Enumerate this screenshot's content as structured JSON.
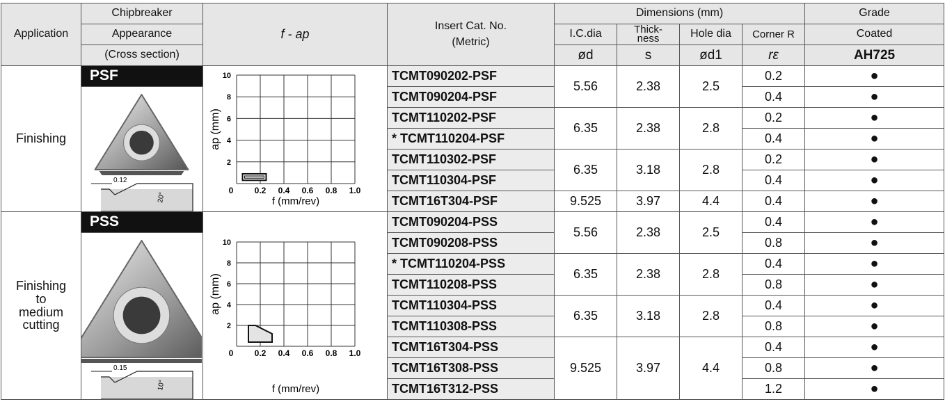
{
  "header": {
    "application": "Application",
    "chipbreaker": "Chipbreaker",
    "appearance": "Appearance",
    "cross_section": "(Cross section)",
    "f_ap": "f - ap",
    "insert_cat_no": "Insert Cat. No.",
    "metric": "(Metric)",
    "dimensions": "Dimensions (mm)",
    "ic_dia": "I.C.dia",
    "thickness_1": "Thick-",
    "thickness_2": "ness",
    "hole_dia": "Hole dia",
    "corner_r": "Corner R",
    "sym_d": "ød",
    "sym_s": "s",
    "sym_d1": "ød1",
    "sym_r": "rε",
    "grade": "Grade",
    "coated": "Coated",
    "grade_name": "AH725"
  },
  "sections": [
    {
      "application": [
        "Finishing"
      ],
      "chipbreaker": "PSF",
      "profile_dim": "0.12",
      "profile_angle": "20°",
      "chart": {
        "y_label": "ap (mm)",
        "x_label": "f (mm/rev)",
        "yticks": [
          "10",
          "8",
          "6",
          "4",
          "2"
        ],
        "xticks": [
          "0",
          "0.2",
          "0.4",
          "0.6",
          "0.8",
          "1.0"
        ]
      },
      "groups": [
        {
          "ic": "5.56",
          "thickness": "2.38",
          "hole": "2.5",
          "inserts": [
            {
              "cat": "TCMT090202-PSF",
              "corner": "0.2",
              "grade": "●"
            },
            {
              "cat": "TCMT090204-PSF",
              "corner": "0.4",
              "grade": "●"
            }
          ]
        },
        {
          "ic": "6.35",
          "thickness": "2.38",
          "hole": "2.8",
          "inserts": [
            {
              "cat": "TCMT110202-PSF",
              "corner": "0.2",
              "grade": "●"
            },
            {
              "cat": "* TCMT110204-PSF",
              "corner": "0.4",
              "grade": "●"
            }
          ]
        },
        {
          "ic": "6.35",
          "thickness": "3.18",
          "hole": "2.8",
          "inserts": [
            {
              "cat": "TCMT110302-PSF",
              "corner": "0.2",
              "grade": "●"
            },
            {
              "cat": "TCMT110304-PSF",
              "corner": "0.4",
              "grade": "●"
            }
          ]
        },
        {
          "ic": "9.525",
          "thickness": "3.97",
          "hole": "4.4",
          "inserts": [
            {
              "cat": "TCMT16T304-PSF",
              "corner": "0.4",
              "grade": "●"
            }
          ]
        }
      ]
    },
    {
      "application": [
        "Finishing",
        "to",
        "medium",
        "cutting"
      ],
      "chipbreaker": "PSS",
      "profile_dim": "0.15",
      "profile_angle": "10°",
      "chart": {
        "y_label": "ap (mm)",
        "x_label": "f (mm/rev)",
        "yticks": [
          "10",
          "8",
          "6",
          "4",
          "2"
        ],
        "xticks": [
          "0",
          "0.2",
          "0.4",
          "0.6",
          "0.8",
          "1.0"
        ]
      },
      "groups": [
        {
          "ic": "5.56",
          "thickness": "2.38",
          "hole": "2.5",
          "inserts": [
            {
              "cat": "TCMT090204-PSS",
              "corner": "0.4",
              "grade": "●"
            },
            {
              "cat": "TCMT090208-PSS",
              "corner": "0.8",
              "grade": "●"
            }
          ]
        },
        {
          "ic": "6.35",
          "thickness": "2.38",
          "hole": "2.8",
          "inserts": [
            {
              "cat": "* TCMT110204-PSS",
              "corner": "0.4",
              "grade": "●"
            },
            {
              "cat": "TCMT110208-PSS",
              "corner": "0.8",
              "grade": "●"
            }
          ]
        },
        {
          "ic": "6.35",
          "thickness": "3.18",
          "hole": "2.8",
          "inserts": [
            {
              "cat": "TCMT110304-PSS",
              "corner": "0.4",
              "grade": "●"
            },
            {
              "cat": "TCMT110308-PSS",
              "corner": "0.8",
              "grade": "●"
            }
          ]
        },
        {
          "ic": "9.525",
          "thickness": "3.97",
          "hole": "4.4",
          "inserts": [
            {
              "cat": "TCMT16T304-PSS",
              "corner": "0.4",
              "grade": "●"
            },
            {
              "cat": "TCMT16T308-PSS",
              "corner": "0.8",
              "grade": "●"
            },
            {
              "cat": "TCMT16T312-PSS",
              "corner": "1.2",
              "grade": "●"
            }
          ]
        }
      ]
    }
  ]
}
